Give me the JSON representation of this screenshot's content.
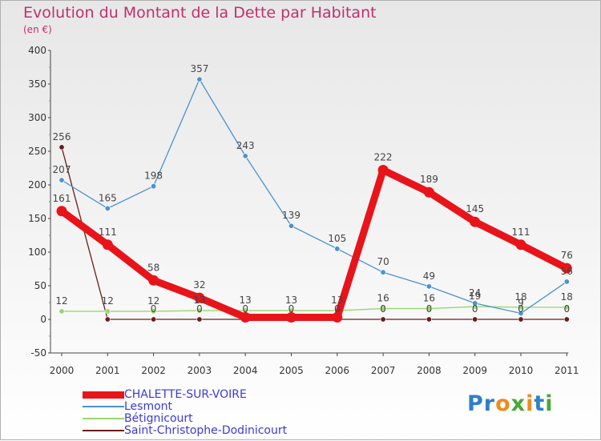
{
  "chart_data": {
    "type": "line",
    "title": "Evolution du Montant de la Dette par Habitant",
    "subtitle": "(en €)",
    "xlabel": "",
    "ylabel": "",
    "x": [
      "2000",
      "2001",
      "2002",
      "2003",
      "2004",
      "2005",
      "2006",
      "2007",
      "2008",
      "2009",
      "2010",
      "2011"
    ],
    "ylim": [
      -50,
      400
    ],
    "yticks": [
      -50,
      0,
      50,
      100,
      150,
      200,
      250,
      300,
      350,
      400
    ],
    "grid": false,
    "legend_position": "bottom-left",
    "series": [
      {
        "name": "CHALETTE-SUR-VOIRE",
        "color": "#e8141a",
        "values": [
          161,
          111,
          58,
          32,
          3,
          3,
          3,
          222,
          189,
          145,
          111,
          76
        ],
        "labels": [
          "161",
          "111",
          "58",
          "32",
          "",
          "",
          "",
          "222",
          "189",
          "145",
          "111",
          "76"
        ]
      },
      {
        "name": "Lesmont",
        "color": "#4b92cc",
        "values": [
          207,
          165,
          198,
          357,
          243,
          139,
          105,
          70,
          49,
          24,
          9,
          56
        ],
        "labels": [
          "207",
          "165",
          "198",
          "357",
          "243",
          "139",
          "105",
          "70",
          "49",
          "24",
          "9",
          "56"
        ]
      },
      {
        "name": "Bétignicourt",
        "color": "#98d66e",
        "values": [
          12,
          12,
          12,
          13,
          13,
          13,
          13,
          16,
          16,
          19,
          18,
          18
        ],
        "labels": [
          "12",
          "12",
          "12",
          "13",
          "13",
          "13",
          "13",
          "16",
          "16",
          "19",
          "18",
          "18"
        ]
      },
      {
        "name": "Saint-Christophe-Dodinicourt",
        "color": "#6d1b1b",
        "values": [
          256,
          0,
          0,
          0,
          0,
          0,
          0,
          0,
          0,
          0,
          0,
          0
        ],
        "labels": [
          "256",
          "",
          "0",
          "0",
          "0",
          "0",
          "0",
          "0",
          "0",
          "0",
          "0",
          "0"
        ]
      }
    ]
  },
  "branding": {
    "logo_text": "Proxiti"
  }
}
